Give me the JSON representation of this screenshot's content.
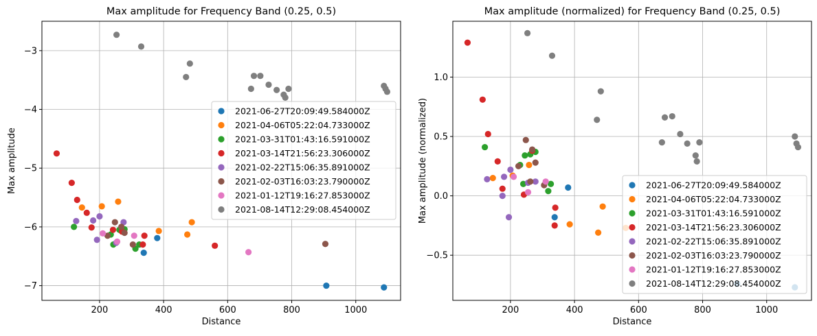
{
  "chart_data": [
    {
      "type": "scatter",
      "title": "Max amplitude for Frequency Band (0.25, 0.5)",
      "xlabel": "Distance",
      "ylabel": "Max amplitude",
      "xlim": [
        20,
        1140
      ],
      "ylim": [
        -7.25,
        -2.5
      ],
      "xticks": [
        200,
        400,
        600,
        800,
        1000
      ],
      "yticks": [
        -7,
        -6,
        -5,
        -4,
        -3
      ],
      "ytick_labels": [
        "−7",
        "−6",
        "−5",
        "−4",
        "−3"
      ],
      "grid": true,
      "legend_position": "center right",
      "series": [
        {
          "name": "2021-06-27T20:09:49.584000Z",
          "color": "#1f77b4",
          "points": [
            [
              338,
              -6.44
            ],
            [
              380,
              -6.19
            ],
            [
              908,
              -7.0
            ],
            [
              1088,
              -7.03
            ]
          ]
        },
        {
          "name": "2021-04-06T05:22:04.733000Z",
          "color": "#ff7f0e",
          "points": [
            [
              145,
              -5.67
            ],
            [
              207,
              -5.65
            ],
            [
              258,
              -5.57
            ],
            [
              385,
              -6.07
            ],
            [
              474,
              -6.13
            ],
            [
              488,
              -5.92
            ]
          ]
        },
        {
          "name": "2021-03-31T01:43:16.591000Z",
          "color": "#2ca02c",
          "points": [
            [
              120,
              -6.0
            ],
            [
              235,
              -6.13
            ],
            [
              243,
              -6.3
            ],
            [
              262,
              -6.05
            ],
            [
              278,
              -6.04
            ],
            [
              312,
              -6.37
            ],
            [
              324,
              -6.3
            ]
          ]
        },
        {
          "name": "2021-03-14T21:56:23.306000Z",
          "color": "#d62728",
          "points": [
            [
              66,
              -4.75
            ],
            [
              113,
              -5.25
            ],
            [
              130,
              -5.54
            ],
            [
              160,
              -5.76
            ],
            [
              175,
              -6.01
            ],
            [
              242,
              -6.05
            ],
            [
              270,
              -6.08
            ],
            [
              335,
              -6.3
            ],
            [
              340,
              -6.15
            ],
            [
              560,
              -6.32
            ]
          ]
        },
        {
          "name": "2021-02-22T15:06:35.891000Z",
          "color": "#9467bd",
          "points": [
            [
              127,
              -5.9
            ],
            [
              180,
              -5.89
            ],
            [
              192,
              -6.22
            ],
            [
              200,
              -5.82
            ],
            [
              252,
              -6.27
            ],
            [
              275,
              -5.92
            ]
          ]
        },
        {
          "name": "2021-02-03T16:03:23.790000Z",
          "color": "#8c564b",
          "points": [
            [
              225,
              -6.15
            ],
            [
              248,
              -5.92
            ],
            [
              268,
              -6.0
            ],
            [
              278,
              -6.1
            ],
            [
              304,
              -6.3
            ],
            [
              905,
              -6.29
            ]
          ]
        },
        {
          "name": "2021-01-12T19:16:27.853000Z",
          "color": "#e377c2",
          "points": [
            [
              210,
              -6.11
            ],
            [
              255,
              -6.25
            ],
            [
              308,
              -6.15
            ],
            [
              665,
              -6.43
            ]
          ]
        },
        {
          "name": "2021-08-14T12:29:08.454000Z",
          "color": "#7f7f7f",
          "points": [
            [
              253,
              -2.73
            ],
            [
              330,
              -2.93
            ],
            [
              470,
              -3.45
            ],
            [
              482,
              -3.22
            ],
            [
              673,
              -3.65
            ],
            [
              682,
              -3.43
            ],
            [
              702,
              -3.43
            ],
            [
              728,
              -3.58
            ],
            [
              753,
              -3.67
            ],
            [
              775,
              -3.75
            ],
            [
              780,
              -3.8
            ],
            [
              790,
              -3.65
            ],
            [
              1088,
              -3.6
            ],
            [
              1093,
              -3.65
            ],
            [
              1098,
              -3.7
            ]
          ]
        }
      ]
    },
    {
      "type": "scatter",
      "title": "Max amplitude (normalized) for Frequency Band (0.25, 0.5)",
      "xlabel": "Distance",
      "ylabel": "Max amplitude (normalized)",
      "xlim": [
        20,
        1140
      ],
      "ylim": [
        -0.88,
        1.47
      ],
      "xticks": [
        200,
        400,
        600,
        800,
        1000
      ],
      "yticks": [
        -0.5,
        0.0,
        0.5,
        1.0
      ],
      "ytick_labels": [
        "−0.5",
        "0.0",
        "0.5",
        "1.0"
      ],
      "grid": true,
      "legend_position": "lower right",
      "series": [
        {
          "name": "2021-06-27T20:09:49.584000Z",
          "color": "#1f77b4",
          "points": [
            [
              338,
              -0.18
            ],
            [
              380,
              0.07
            ],
            [
              908,
              -0.74
            ],
            [
              1088,
              -0.77
            ]
          ]
        },
        {
          "name": "2021-04-06T05:22:04.733000Z",
          "color": "#ff7f0e",
          "points": [
            [
              145,
              0.15
            ],
            [
              207,
              0.17
            ],
            [
              258,
              0.26
            ],
            [
              385,
              -0.24
            ],
            [
              474,
              -0.31
            ],
            [
              488,
              -0.09
            ],
            [
              560,
              -0.27
            ]
          ]
        },
        {
          "name": "2021-03-31T01:43:16.591000Z",
          "color": "#2ca02c",
          "points": [
            [
              120,
              0.41
            ],
            [
              230,
              0.26
            ],
            [
              240,
              0.1
            ],
            [
              245,
              0.34
            ],
            [
              262,
              0.35
            ],
            [
              270,
              0.38
            ],
            [
              278,
              0.37
            ],
            [
              318,
              0.04
            ],
            [
              326,
              0.1
            ]
          ]
        },
        {
          "name": "2021-03-14T21:56:23.306000Z",
          "color": "#d62728",
          "points": [
            [
              66,
              1.29
            ],
            [
              113,
              0.81
            ],
            [
              130,
              0.52
            ],
            [
              160,
              0.29
            ],
            [
              175,
              0.06
            ],
            [
              242,
              0.01
            ],
            [
              268,
              0.38
            ],
            [
              338,
              -0.25
            ],
            [
              340,
              -0.1
            ]
          ]
        },
        {
          "name": "2021-02-22T15:06:35.891000Z",
          "color": "#9467bd",
          "points": [
            [
              127,
              0.14
            ],
            [
              175,
              0.0
            ],
            [
              180,
              0.16
            ],
            [
              195,
              -0.18
            ],
            [
              200,
              0.22
            ],
            [
              255,
              0.11
            ],
            [
              278,
              0.12
            ]
          ]
        },
        {
          "name": "2021-02-03T16:03:23.790000Z",
          "color": "#8c564b",
          "points": [
            [
              225,
              0.25
            ],
            [
              248,
              0.47
            ],
            [
              262,
              0.12
            ],
            [
              268,
              0.39
            ],
            [
              278,
              0.28
            ],
            [
              305,
              0.09
            ]
          ]
        },
        {
          "name": "2021-01-12T19:16:27.853000Z",
          "color": "#e377c2",
          "points": [
            [
              210,
              0.16
            ],
            [
              255,
              0.03
            ],
            [
              310,
              0.12
            ]
          ]
        },
        {
          "name": "2021-08-14T12:29:08.454000Z",
          "color": "#7f7f7f",
          "points": [
            [
              253,
              1.37
            ],
            [
              330,
              1.18
            ],
            [
              470,
              0.64
            ],
            [
              482,
              0.88
            ],
            [
              673,
              0.45
            ],
            [
              682,
              0.66
            ],
            [
              705,
              0.67
            ],
            [
              730,
              0.52
            ],
            [
              752,
              0.44
            ],
            [
              778,
              0.34
            ],
            [
              782,
              0.29
            ],
            [
              790,
              0.45
            ],
            [
              1088,
              0.5
            ],
            [
              1093,
              0.44
            ],
            [
              1098,
              0.41
            ]
          ]
        }
      ]
    }
  ]
}
